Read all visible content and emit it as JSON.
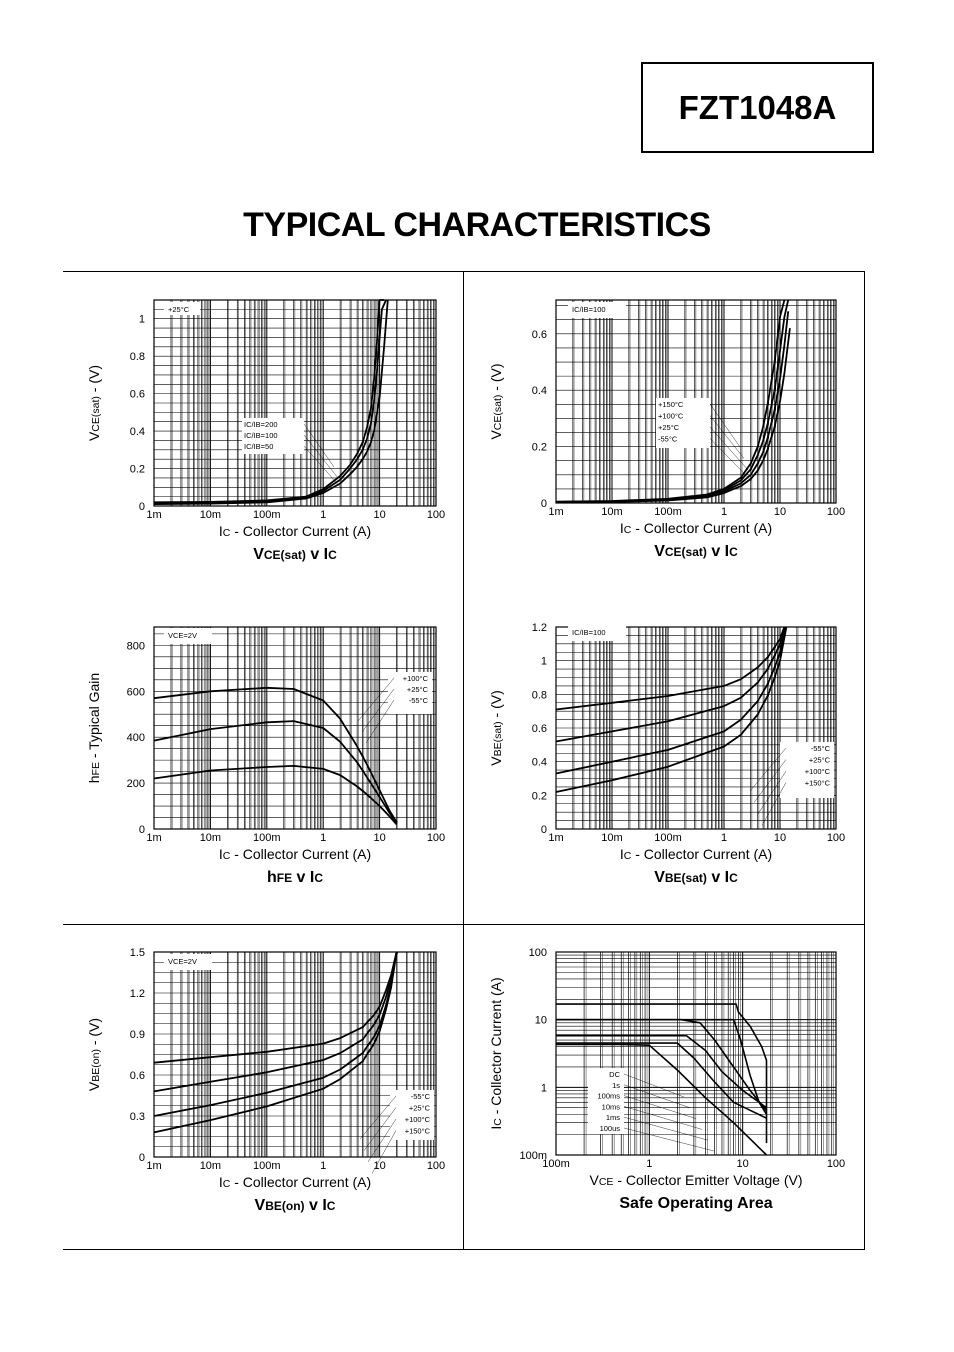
{
  "part_number": "FZT1048A",
  "page_heading": "TYPICAL CHARACTERISTICS",
  "chart_data": [
    {
      "id": "vcesat-ic",
      "type": "line",
      "x_scale": "log",
      "xlim": [
        0.001,
        100
      ],
      "ylim": [
        0,
        1.1
      ],
      "x_ticks": [
        "1m",
        "10m",
        "100m",
        "1",
        "10",
        "100"
      ],
      "y_ticks": [
        "0",
        "0.2",
        "0.4",
        "0.6",
        "0.8",
        "1"
      ],
      "y_tick_values": [
        0,
        0.2,
        0.4,
        0.6,
        0.8,
        1
      ],
      "xlabel_main": "I",
      "xlabel_sub": "C",
      "xlabel_rest": " - Collector Current (A)",
      "ylabel_main": "V",
      "ylabel_sub": "CE(sat)",
      "ylabel_rest": " - (V)",
      "title_parts": [
        "V",
        "CE(sat)",
        " v I",
        "C"
      ],
      "condition": "+25°C",
      "legend": [
        "IC/IB=200",
        "IC/IB=100",
        "IC/IB=50"
      ],
      "series": [
        {
          "name": "IC/IB=200",
          "x": [
            0.001,
            0.01,
            0.1,
            0.5,
            1,
            2,
            3,
            4,
            5,
            6,
            7,
            8,
            9,
            10,
            12
          ],
          "y": [
            0.02,
            0.022,
            0.03,
            0.05,
            0.09,
            0.16,
            0.22,
            0.28,
            0.34,
            0.42,
            0.52,
            0.68,
            0.88,
            1.1,
            1.1
          ]
        },
        {
          "name": "IC/IB=100",
          "x": [
            0.001,
            0.01,
            0.1,
            0.5,
            1,
            2,
            3,
            4,
            5,
            6,
            7,
            8,
            9,
            10,
            11,
            13
          ],
          "y": [
            0.015,
            0.018,
            0.025,
            0.045,
            0.08,
            0.14,
            0.2,
            0.25,
            0.3,
            0.36,
            0.44,
            0.56,
            0.72,
            0.9,
            1.05,
            1.1
          ]
        },
        {
          "name": "IC/IB=50",
          "x": [
            0.001,
            0.01,
            0.1,
            0.5,
            1,
            2,
            3,
            4,
            5,
            6,
            7,
            8,
            10,
            12,
            14
          ],
          "y": [
            0.01,
            0.013,
            0.02,
            0.04,
            0.07,
            0.12,
            0.17,
            0.21,
            0.25,
            0.29,
            0.34,
            0.4,
            0.58,
            0.85,
            1.1
          ]
        }
      ]
    },
    {
      "id": "vcesat-ic-temp",
      "type": "line",
      "x_scale": "log",
      "xlim": [
        0.001,
        100
      ],
      "ylim": [
        0,
        0.72
      ],
      "x_ticks": [
        "1m",
        "10m",
        "100m",
        "1",
        "10",
        "100"
      ],
      "y_ticks": [
        "0",
        "0.2",
        "0.4",
        "0.6"
      ],
      "y_tick_values": [
        0,
        0.2,
        0.4,
        0.6
      ],
      "xlabel_main": "I",
      "xlabel_sub": "C",
      "xlabel_rest": " - Collector Current (A)",
      "ylabel_main": "V",
      "ylabel_sub": "CE(sat)",
      "ylabel_rest": " - (V)",
      "title_parts": [
        "V",
        "CE(sat)",
        " v I",
        "C"
      ],
      "condition": "IC/IB=100",
      "legend": [
        "+150°C",
        "+100°C",
        "+25°C",
        "-55°C"
      ],
      "series": [
        {
          "name": "+150°C",
          "x": [
            0.001,
            0.01,
            0.1,
            0.5,
            1,
            2,
            3,
            4,
            5,
            6,
            8,
            10,
            12
          ],
          "y": [
            0.005,
            0.007,
            0.015,
            0.03,
            0.05,
            0.09,
            0.14,
            0.2,
            0.27,
            0.35,
            0.5,
            0.66,
            0.72
          ]
        },
        {
          "name": "+100°C",
          "x": [
            0.001,
            0.01,
            0.1,
            0.5,
            1,
            2,
            3,
            4,
            5,
            6,
            8,
            10,
            12,
            14
          ],
          "y": [
            0.004,
            0.006,
            0.013,
            0.027,
            0.045,
            0.08,
            0.12,
            0.17,
            0.22,
            0.28,
            0.4,
            0.54,
            0.66,
            0.72
          ]
        },
        {
          "name": "+25°C",
          "x": [
            0.001,
            0.01,
            0.1,
            0.5,
            1,
            2,
            3,
            4,
            5,
            6,
            8,
            10,
            12,
            14
          ],
          "y": [
            0.003,
            0.005,
            0.011,
            0.023,
            0.04,
            0.07,
            0.1,
            0.14,
            0.18,
            0.23,
            0.33,
            0.44,
            0.56,
            0.68
          ]
        },
        {
          "name": "-55°C",
          "x": [
            0.001,
            0.01,
            0.1,
            0.5,
            1,
            2,
            3,
            4,
            5,
            6,
            8,
            10,
            12,
            15
          ],
          "y": [
            0.002,
            0.004,
            0.009,
            0.02,
            0.035,
            0.06,
            0.085,
            0.115,
            0.15,
            0.19,
            0.27,
            0.36,
            0.46,
            0.62
          ]
        }
      ]
    },
    {
      "id": "hfe-ic",
      "type": "line",
      "x_scale": "log",
      "xlim": [
        0.001,
        100
      ],
      "ylim": [
        0,
        880
      ],
      "x_ticks": [
        "1m",
        "10m",
        "100m",
        "1",
        "10",
        "100"
      ],
      "y_ticks": [
        "0",
        "200",
        "400",
        "600",
        "800"
      ],
      "y_tick_values": [
        0,
        200,
        400,
        600,
        800
      ],
      "xlabel_main": "I",
      "xlabel_sub": "C",
      "xlabel_rest": " - Collector Current (A)",
      "ylabel_main": "h",
      "ylabel_sub": "FE",
      "ylabel_rest": " - Typical Gain",
      "title_parts": [
        "h",
        "FE",
        " v I",
        "C"
      ],
      "condition": "VCE=2V",
      "legend": [
        "+100°C",
        "+25°C",
        "-55°C"
      ],
      "series": [
        {
          "name": "+100°C",
          "x": [
            0.001,
            0.01,
            0.1,
            0.3,
            1,
            2,
            4,
            6,
            10,
            15,
            20
          ],
          "y": [
            570,
            600,
            615,
            610,
            560,
            480,
            360,
            280,
            170,
            80,
            30
          ]
        },
        {
          "name": "+25°C",
          "x": [
            0.001,
            0.01,
            0.1,
            0.3,
            1,
            2,
            4,
            6,
            10,
            15,
            20
          ],
          "y": [
            385,
            435,
            465,
            470,
            440,
            380,
            290,
            225,
            140,
            70,
            25
          ]
        },
        {
          "name": "-55°C",
          "x": [
            0.001,
            0.01,
            0.1,
            0.3,
            1,
            2,
            4,
            6,
            10,
            15,
            20
          ],
          "y": [
            220,
            255,
            270,
            275,
            262,
            235,
            185,
            150,
            100,
            55,
            20
          ]
        }
      ]
    },
    {
      "id": "vbesat-ic",
      "type": "line",
      "x_scale": "log",
      "xlim": [
        0.001,
        100
      ],
      "ylim": [
        0,
        1.2
      ],
      "x_ticks": [
        "1m",
        "10m",
        "100m",
        "1",
        "10",
        "100"
      ],
      "y_ticks": [
        "0",
        "0.2",
        "0.4",
        "0.6",
        "0.8",
        "1",
        "1.2"
      ],
      "y_tick_values": [
        0,
        0.2,
        0.4,
        0.6,
        0.8,
        1,
        1.2
      ],
      "xlabel_main": "I",
      "xlabel_sub": "C",
      "xlabel_rest": " - Collector Current (A)",
      "ylabel_main": "V",
      "ylabel_sub": "BE(sat)",
      "ylabel_rest": " - (V)",
      "title_parts": [
        "V",
        "BE(sat)",
        " v I",
        "C"
      ],
      "condition": "IC/IB=100",
      "legend": [
        "-55°C",
        "+25°C",
        "+100°C",
        "+150°C"
      ],
      "series": [
        {
          "name": "-55°C",
          "x": [
            0.001,
            0.01,
            0.1,
            1,
            2,
            4,
            6,
            8,
            10,
            12
          ],
          "y": [
            0.71,
            0.75,
            0.79,
            0.85,
            0.89,
            0.96,
            1.02,
            1.08,
            1.13,
            1.2
          ]
        },
        {
          "name": "+25°C",
          "x": [
            0.001,
            0.01,
            0.1,
            1,
            2,
            4,
            6,
            8,
            10,
            12
          ],
          "y": [
            0.52,
            0.58,
            0.64,
            0.73,
            0.78,
            0.87,
            0.95,
            1.03,
            1.1,
            1.2
          ]
        },
        {
          "name": "+100°C",
          "x": [
            0.001,
            0.01,
            0.1,
            1,
            2,
            4,
            6,
            8,
            10,
            12.5
          ],
          "y": [
            0.33,
            0.4,
            0.47,
            0.58,
            0.65,
            0.76,
            0.86,
            0.96,
            1.05,
            1.2
          ]
        },
        {
          "name": "+150°C",
          "x": [
            0.001,
            0.01,
            0.1,
            1,
            2,
            4,
            6,
            8,
            10,
            13
          ],
          "y": [
            0.22,
            0.29,
            0.37,
            0.49,
            0.56,
            0.68,
            0.79,
            0.9,
            1.0,
            1.2
          ]
        }
      ]
    },
    {
      "id": "vbeon-ic",
      "type": "line",
      "x_scale": "log",
      "xlim": [
        0.001,
        100
      ],
      "ylim": [
        0,
        1.5
      ],
      "x_ticks": [
        "1m",
        "10m",
        "100m",
        "1",
        "10",
        "100"
      ],
      "y_ticks": [
        "0",
        "0.3",
        "0.6",
        "0.9",
        "1.2",
        "1.5"
      ],
      "y_tick_values": [
        0,
        0.3,
        0.6,
        0.9,
        1.2,
        1.5
      ],
      "xlabel_main": "I",
      "xlabel_sub": "C",
      "xlabel_rest": " - Collector Current (A)",
      "ylabel_main": "V",
      "ylabel_sub": "BE(on)",
      "ylabel_rest": " - (V)",
      "title_parts": [
        "V",
        "BE(on)",
        " v I",
        "C"
      ],
      "condition": "VCE=2V",
      "legend": [
        "-55°C",
        "+25°C",
        "+100°C",
        "+150°C"
      ],
      "series": [
        {
          "name": "-55°C",
          "x": [
            0.001,
            0.01,
            0.1,
            1,
            2,
            5,
            8,
            10,
            13,
            16,
            20
          ],
          "y": [
            0.69,
            0.73,
            0.77,
            0.83,
            0.87,
            0.95,
            1.04,
            1.1,
            1.22,
            1.33,
            1.5
          ]
        },
        {
          "name": "+25°C",
          "x": [
            0.001,
            0.01,
            0.1,
            1,
            2,
            5,
            8,
            10,
            13,
            16,
            20
          ],
          "y": [
            0.48,
            0.55,
            0.62,
            0.71,
            0.76,
            0.86,
            0.97,
            1.04,
            1.17,
            1.3,
            1.5
          ]
        },
        {
          "name": "+100°C",
          "x": [
            0.001,
            0.01,
            0.1,
            1,
            2,
            5,
            8,
            10,
            13,
            16,
            20
          ],
          "y": [
            0.3,
            0.38,
            0.47,
            0.58,
            0.64,
            0.76,
            0.88,
            0.96,
            1.11,
            1.26,
            1.5
          ]
        },
        {
          "name": "+150°C",
          "x": [
            0.001,
            0.01,
            0.1,
            1,
            2,
            5,
            8,
            10,
            13,
            16,
            20
          ],
          "y": [
            0.18,
            0.27,
            0.37,
            0.5,
            0.57,
            0.7,
            0.83,
            0.92,
            1.08,
            1.24,
            1.5
          ]
        }
      ]
    },
    {
      "id": "soa",
      "type": "line",
      "x_scale": "log",
      "y_scale": "log",
      "xlim": [
        0.1,
        100
      ],
      "ylim": [
        0.1,
        100
      ],
      "x_ticks": [
        "100m",
        "1",
        "10",
        "100"
      ],
      "y_ticks": [
        "100m",
        "1",
        "10",
        "100"
      ],
      "y_tick_values": [
        0.1,
        1,
        10,
        100
      ],
      "xlabel_main": "V",
      "xlabel_sub": "CE",
      "xlabel_rest": " - Collector Emitter Voltage (V)",
      "ylabel_main": "I",
      "ylabel_sub": "C",
      "ylabel_rest": " - Collector Current (A)",
      "title_parts": [
        "Safe Operating Area",
        "",
        "",
        ""
      ],
      "condition": "",
      "legend": [
        "DC",
        "1s",
        "100ms",
        "10ms",
        "1ms",
        "100us"
      ],
      "series": [
        {
          "name": "100us",
          "x": [
            0.1,
            4.0,
            8.5,
            9.0,
            12,
            16,
            18,
            18
          ],
          "y": [
            17,
            17,
            17,
            13,
            8,
            4,
            2.5,
            0.15
          ]
        },
        {
          "name": "1ms",
          "x": [
            0.1,
            3.5,
            8.0,
            9.5,
            12,
            15,
            18
          ],
          "y": [
            10,
            10,
            10,
            5,
            1.5,
            0.6,
            0.4
          ]
        },
        {
          "name": "10ms",
          "x": [
            0.1,
            2.2,
            3.5,
            5,
            8,
            12,
            18
          ],
          "y": [
            10,
            10,
            9,
            5,
            2,
            0.9,
            0.45
          ]
        },
        {
          "name": "100ms",
          "x": [
            0.1,
            1.5,
            2.5,
            4,
            6,
            10,
            18
          ],
          "y": [
            5.8,
            5.8,
            5.8,
            3.5,
            1.7,
            0.9,
            0.5
          ]
        },
        {
          "name": "1s",
          "x": [
            0.1,
            1.0,
            2.0,
            3,
            5,
            8,
            18
          ],
          "y": [
            4.5,
            4.5,
            4.5,
            2.7,
            1.2,
            0.6,
            0.35
          ]
        },
        {
          "name": "DC",
          "x": [
            0.1,
            0.5,
            1.0,
            2,
            4,
            8,
            18
          ],
          "y": [
            4.3,
            4.3,
            4.2,
            1.8,
            0.7,
            0.3,
            0.1
          ]
        }
      ]
    }
  ]
}
